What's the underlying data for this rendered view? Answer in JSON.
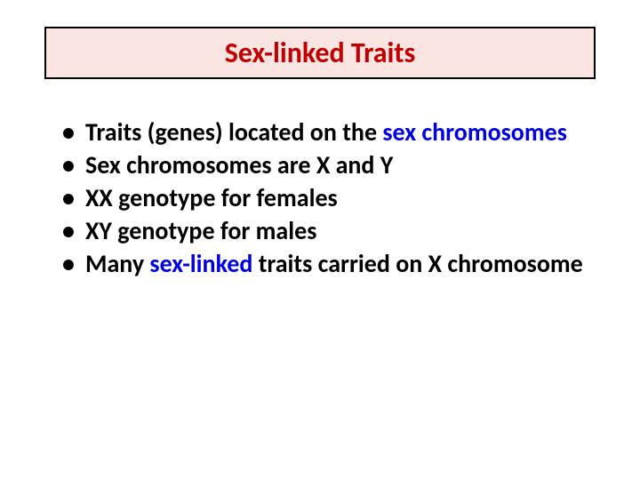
{
  "title": "Sex-linked Traits",
  "bullets": {
    "b1a": "Traits (genes) located on the ",
    "b1b": "sex chromosomes",
    "b2a": "Sex chromosomes are ",
    "b2b": "X and Y",
    "b3a": "XX genotype",
    "b3b": " for females",
    "b4a": "XY genotype",
    "b4b": " for males",
    "b5a": "Many ",
    "b5b": "sex-linked",
    "b5c": " traits carried on ",
    "b5d": "X chromosome"
  },
  "colors": {
    "title_box_bg": "#fbe5e3",
    "title_text": "#c00000",
    "accent": "#0000e0",
    "body_text": "#000000"
  },
  "typography": {
    "title_fontsize": 32,
    "body_fontsize": 28,
    "font_family": "Calibri"
  }
}
